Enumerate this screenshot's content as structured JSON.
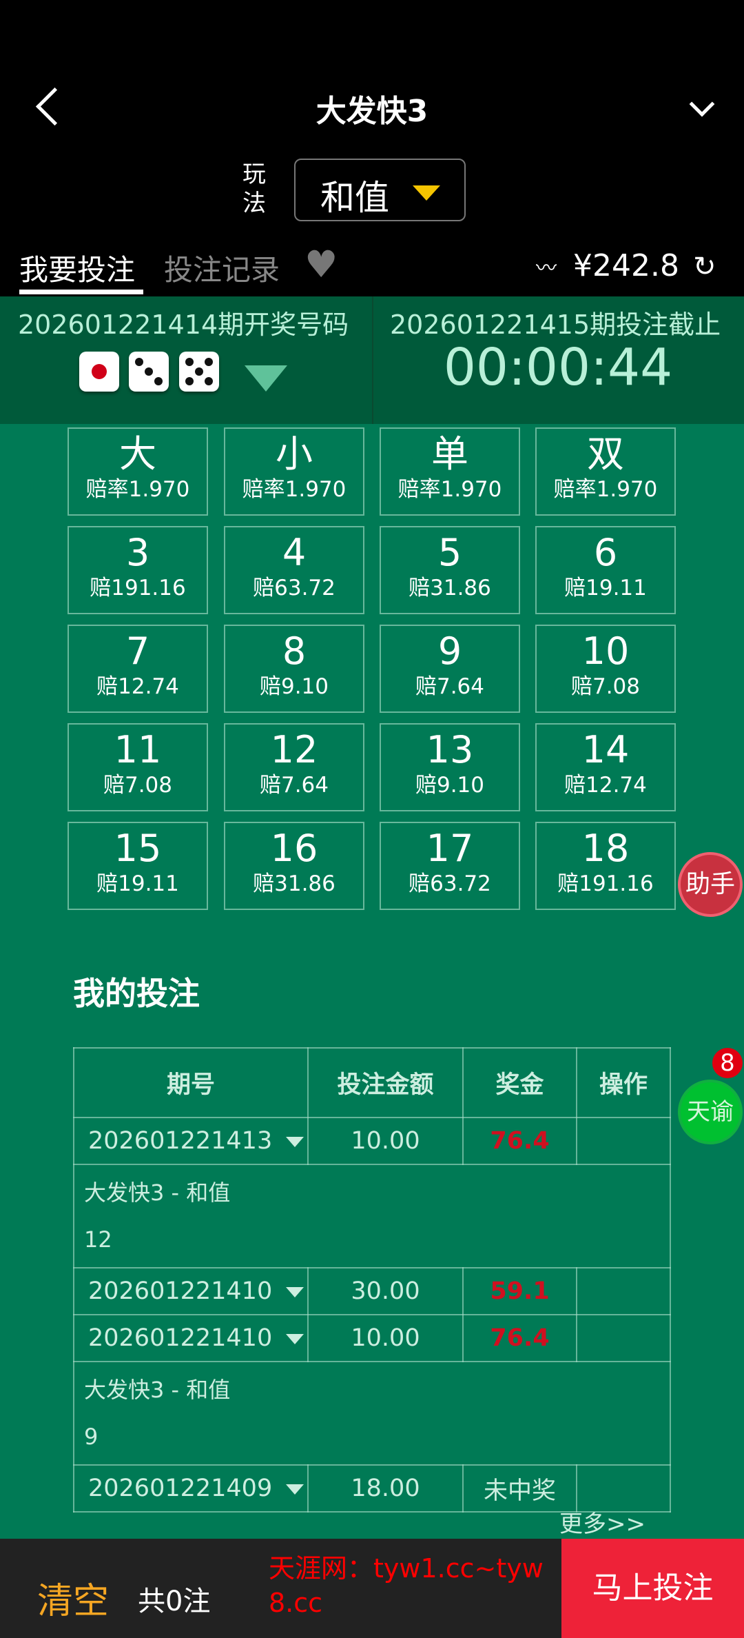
{
  "header": {
    "title": "大发快3",
    "play_label": "玩法",
    "play_value": "和值"
  },
  "tabs": [
    {
      "label": "我要投注",
      "active": true
    },
    {
      "label": "投注记录",
      "active": false
    }
  ],
  "balance": "¥242.8",
  "draw": {
    "last_label": "20260122141­4期开奖号码",
    "dice": [
      1,
      3,
      5
    ],
    "next_label": "20260122141­5期投注截止",
    "countdown": "00:00:44"
  },
  "bets": [
    {
      "name": "大",
      "odds": "赔率1.970"
    },
    {
      "name": "小",
      "odds": "赔率1.970"
    },
    {
      "name": "单",
      "odds": "赔率1.970"
    },
    {
      "name": "双",
      "odds": "赔率1.970"
    },
    {
      "name": "3",
      "odds": "赔191.16"
    },
    {
      "name": "4",
      "odds": "赔63.72"
    },
    {
      "name": "5",
      "odds": "赔31.86"
    },
    {
      "name": "6",
      "odds": "赔19.11"
    },
    {
      "name": "7",
      "odds": "赔12.74"
    },
    {
      "name": "8",
      "odds": "赔9.10"
    },
    {
      "name": "9",
      "odds": "赔7.64"
    },
    {
      "name": "10",
      "odds": "赔7.08"
    },
    {
      "name": "11",
      "odds": "赔7.08"
    },
    {
      "name": "12",
      "odds": "赔7.64"
    },
    {
      "name": "13",
      "odds": "赔9.10"
    },
    {
      "name": "14",
      "odds": "赔12.74"
    },
    {
      "name": "15",
      "odds": "赔19.11"
    },
    {
      "name": "16",
      "odds": "赔31.86"
    },
    {
      "name": "17",
      "odds": "赔63.72"
    },
    {
      "name": "18",
      "odds": "赔191.16"
    }
  ],
  "helper_label": "助手",
  "my_bets": {
    "title": "我的投注",
    "columns": [
      "期号",
      "投注金额",
      "奖金",
      "操作"
    ],
    "rows": [
      {
        "period": "202601221413",
        "amount": "10.00",
        "prize": "76.4",
        "detail": "大发快3 - 和值",
        "number": "12"
      },
      {
        "period": "202601221410",
        "amount": "30.00",
        "prize": "59.1"
      },
      {
        "period": "202601221410",
        "amount": "10.00",
        "prize": "76.4",
        "detail": "大发快3 - 和值",
        "number": "9"
      },
      {
        "period": "202601221409",
        "amount": "18.00",
        "prize": "未中奖"
      }
    ],
    "more": "更多>>"
  },
  "tianyu": {
    "label": "天谕",
    "badge": "8"
  },
  "footer": {
    "clear": "清空",
    "count": "共0注",
    "submit": "马上投注"
  },
  "watermark": "天涯网：tyw1.cc~tyw8.cc",
  "colors": {
    "bg": "#007a55",
    "panel": "#005a3a",
    "accent": "#f5c400",
    "submit": "#ee2238",
    "win": "#d01020"
  }
}
